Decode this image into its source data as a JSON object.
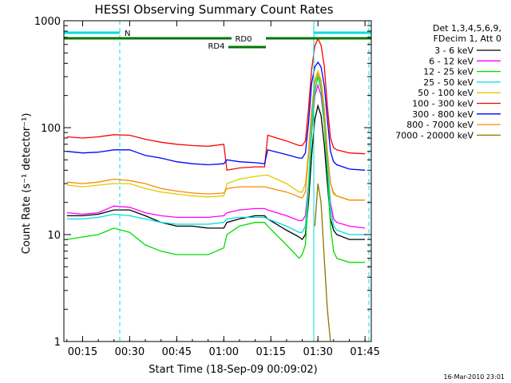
{
  "chart_data": {
    "type": "line",
    "title": "HESSI Observing Summary Count Rates",
    "xlabel": "Start Time (18-Sep-09 00:09:02)",
    "ylabel": "Count Rate (s⁻¹ detector⁻¹)",
    "yscale": "log",
    "ylim": [
      1,
      1000
    ],
    "xlim": [
      "00:09:02",
      "01:47:00"
    ],
    "x_ticks": [
      "00:15",
      "00:30",
      "00:45",
      "01:00",
      "01:15",
      "01:30",
      "01:45"
    ],
    "y_ticks": [
      "1",
      "10",
      "100",
      "1000"
    ],
    "legend_header": [
      "Det 1,3,4,5,6,9,",
      "FDecim 1, Att 0"
    ],
    "timestamp": "16-Mar-2010 23:01",
    "x": [
      "00:10",
      "00:15",
      "00:20",
      "00:25",
      "00:30",
      "00:35",
      "00:40",
      "00:45",
      "00:50",
      "00:55",
      "01:00",
      "01:01",
      "01:05",
      "01:10",
      "01:13",
      "01:14",
      "01:20",
      "01:24",
      "01:25",
      "01:26",
      "01:27",
      "01:28",
      "01:29",
      "01:30",
      "01:31",
      "01:32",
      "01:33",
      "01:34",
      "01:35",
      "01:36",
      "01:40",
      "01:45"
    ],
    "series": [
      {
        "name": "3 - 6 keV",
        "color": "#000000",
        "values": [
          15,
          15,
          15.5,
          17,
          17,
          15,
          13,
          12,
          12,
          11.5,
          11.5,
          13,
          14,
          15,
          15,
          14,
          11,
          9.5,
          9,
          10,
          20,
          55,
          120,
          160,
          130,
          70,
          30,
          14,
          11,
          10,
          9,
          9
        ]
      },
      {
        "name": "6 - 12 keV",
        "color": "#ff00ff",
        "values": [
          16,
          15.5,
          16,
          18.5,
          18,
          16,
          15,
          14.5,
          14.5,
          14.5,
          15,
          16,
          17,
          17.5,
          17.5,
          17,
          15,
          13.5,
          13.5,
          15,
          30,
          90,
          200,
          250,
          200,
          110,
          45,
          20,
          14,
          13,
          12,
          11.5
        ]
      },
      {
        "name": "12 - 25 keV",
        "color": "#00dd00",
        "values": [
          9,
          9.5,
          10,
          11.5,
          10.5,
          8,
          7,
          6.5,
          6.5,
          6.5,
          7.5,
          10,
          12,
          13,
          13,
          12,
          8,
          6,
          6.5,
          8,
          25,
          90,
          220,
          300,
          230,
          110,
          40,
          12,
          7,
          6,
          5.5,
          5.5
        ]
      },
      {
        "name": "25 - 50 keV",
        "color": "#00dddd",
        "values": [
          14,
          14,
          14.5,
          15.5,
          15,
          14,
          13,
          12.5,
          12.5,
          12.5,
          13,
          14,
          14.5,
          14.5,
          14.5,
          14,
          12,
          10.5,
          10.5,
          12,
          30,
          110,
          260,
          320,
          260,
          130,
          50,
          18,
          12,
          11,
          10,
          10
        ]
      },
      {
        "name": "50 - 100 keV",
        "color": "#ddcc00",
        "values": [
          29,
          28,
          29,
          30,
          30,
          27,
          25,
          24,
          23,
          22.5,
          23,
          30,
          33,
          35,
          36,
          36,
          30,
          25,
          25,
          30,
          60,
          150,
          280,
          340,
          280,
          150,
          60,
          30,
          25,
          23,
          21,
          21
        ]
      },
      {
        "name": "100 - 300 keV",
        "color": "#ff0000",
        "values": [
          82,
          80,
          82,
          86,
          85,
          78,
          73,
          70,
          68,
          67,
          70,
          40,
          42,
          43,
          43,
          85,
          75,
          68,
          68,
          75,
          150,
          350,
          580,
          680,
          590,
          380,
          160,
          80,
          65,
          62,
          58,
          57
        ]
      },
      {
        "name": "300 - 800 keV",
        "color": "#0000ff",
        "values": [
          60,
          58,
          59,
          62,
          62,
          55,
          52,
          48,
          46,
          45,
          46,
          50,
          48,
          47,
          46,
          62,
          56,
          52,
          52,
          58,
          110,
          260,
          370,
          410,
          370,
          250,
          120,
          60,
          48,
          45,
          41,
          40
        ]
      },
      {
        "name": "800 - 7000 keV",
        "color": "#ff8800",
        "values": [
          31,
          30,
          31,
          33,
          32,
          30,
          27,
          25.5,
          24.5,
          24,
          24.5,
          27,
          28,
          28,
          28,
          27.5,
          25,
          22.5,
          22,
          25,
          55,
          140,
          270,
          320,
          270,
          150,
          60,
          30,
          24,
          23,
          21,
          21
        ]
      },
      {
        "name": "7000 - 20000 keV",
        "color": "#887700",
        "values": [
          null,
          null,
          null,
          null,
          null,
          null,
          null,
          null,
          null,
          null,
          null,
          null,
          null,
          null,
          null,
          null,
          null,
          null,
          null,
          null,
          null,
          null,
          12,
          30,
          20,
          6,
          2,
          1,
          null,
          null,
          null,
          null
        ]
      }
    ],
    "annotations": [
      {
        "label": "N"
      },
      {
        "label": "RD0"
      },
      {
        "label": "RD4"
      }
    ]
  }
}
